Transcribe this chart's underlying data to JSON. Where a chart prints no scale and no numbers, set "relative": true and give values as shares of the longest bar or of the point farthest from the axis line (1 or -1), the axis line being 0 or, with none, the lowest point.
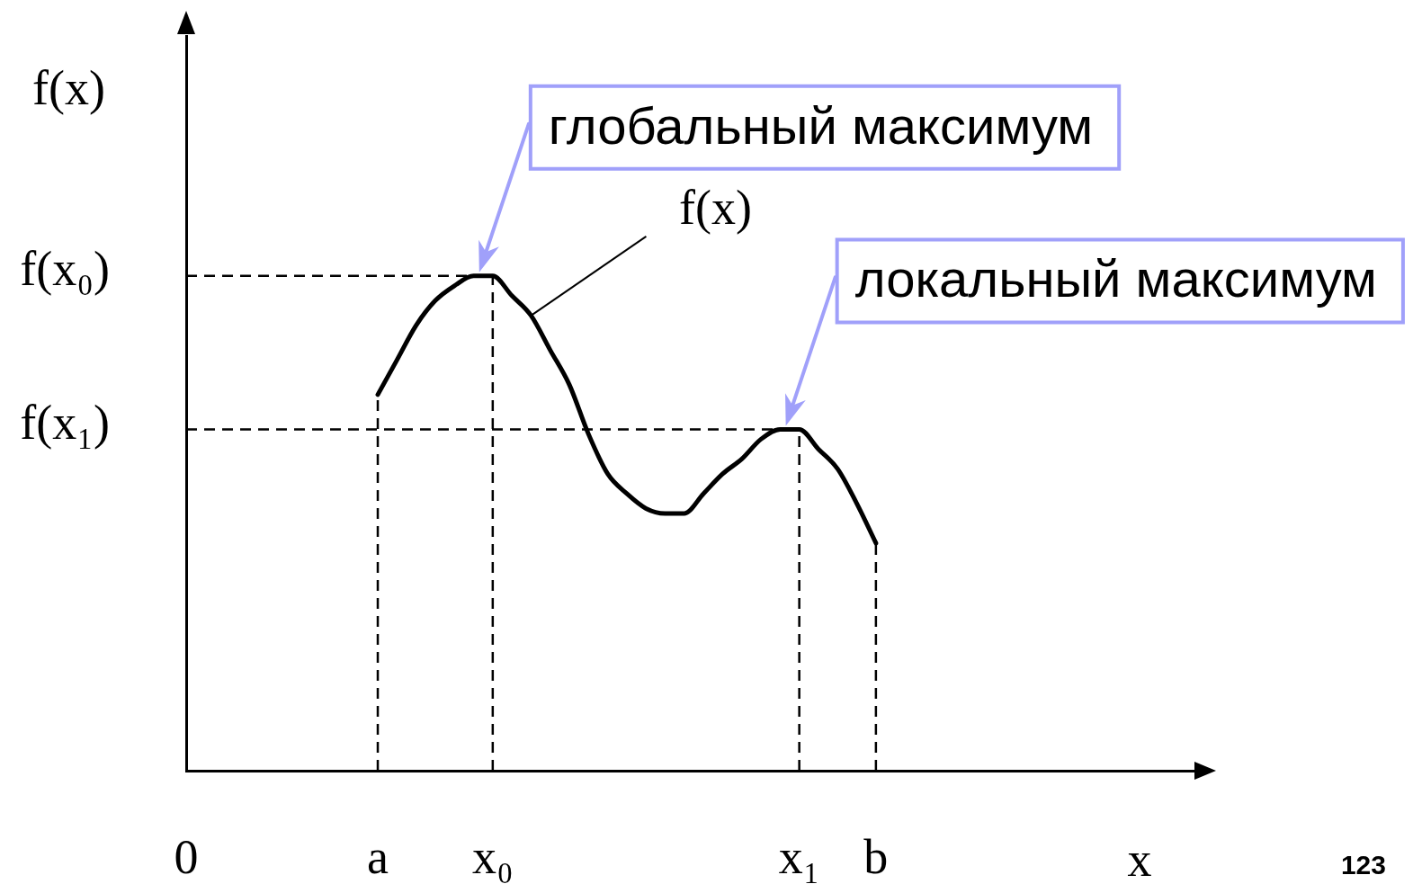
{
  "chart_data": {
    "type": "line",
    "relative": true,
    "xlabel": "x",
    "ylabel": "f(x)",
    "categories": [
      "0",
      null,
      null,
      null,
      null,
      null,
      null,
      null,
      null,
      null,
      "a",
      null,
      null,
      null,
      null,
      null,
      "x₀",
      null,
      null,
      null,
      null,
      null,
      null,
      null,
      null,
      null,
      null,
      null,
      null,
      null,
      null,
      null,
      "x₁",
      null,
      null,
      null,
      "b",
      null,
      null,
      null,
      null,
      null,
      null,
      null,
      null,
      null,
      null,
      null,
      null,
      null,
      null,
      null,
      null,
      null
    ],
    "series": [
      {
        "name": "f(x)",
        "color": "#000000",
        "values": [
          null,
          null,
          null,
          null,
          null,
          null,
          null,
          null,
          null,
          null,
          0.76,
          0.83,
          0.9,
          0.95,
          0.98,
          1,
          1,
          0.96,
          0.92,
          0.85,
          0.78,
          0.68,
          0.6,
          0.56,
          0.53,
          0.52,
          0.52,
          0.56,
          0.6,
          0.63,
          0.67,
          0.69,
          0.69,
          0.65,
          0.61,
          0.54,
          0.46,
          null,
          null,
          null,
          null,
          null,
          null,
          null,
          null,
          null,
          null,
          null,
          null,
          null,
          null,
          null,
          null,
          null
        ]
      }
    ],
    "ref_lines": [
      {
        "axis": "y",
        "value": 1,
        "label": "f(x₀)",
        "color": "#000000",
        "line_style": "dashed"
      },
      {
        "axis": "y",
        "value": 0.69,
        "label": "f(x₁)",
        "color": "#000000",
        "line_style": "dashed"
      },
      {
        "axis": "x",
        "value": "a",
        "color": "#000000",
        "line_style": "dashed"
      },
      {
        "axis": "x",
        "value": "x₀",
        "color": "#000000",
        "line_style": "dashed"
      },
      {
        "axis": "x",
        "value": "x₁",
        "color": "#000000",
        "line_style": "dashed"
      },
      {
        "axis": "x",
        "value": "b",
        "color": "#000000",
        "line_style": "dashed"
      }
    ],
    "annotations": [
      {
        "text": "глобальный максимум",
        "x": "x₀",
        "y": 1
      },
      {
        "text": "локальный максимум",
        "x": "x₁",
        "y": 0.69
      },
      "123"
    ],
    "legend": false,
    "marker": "none"
  }
}
